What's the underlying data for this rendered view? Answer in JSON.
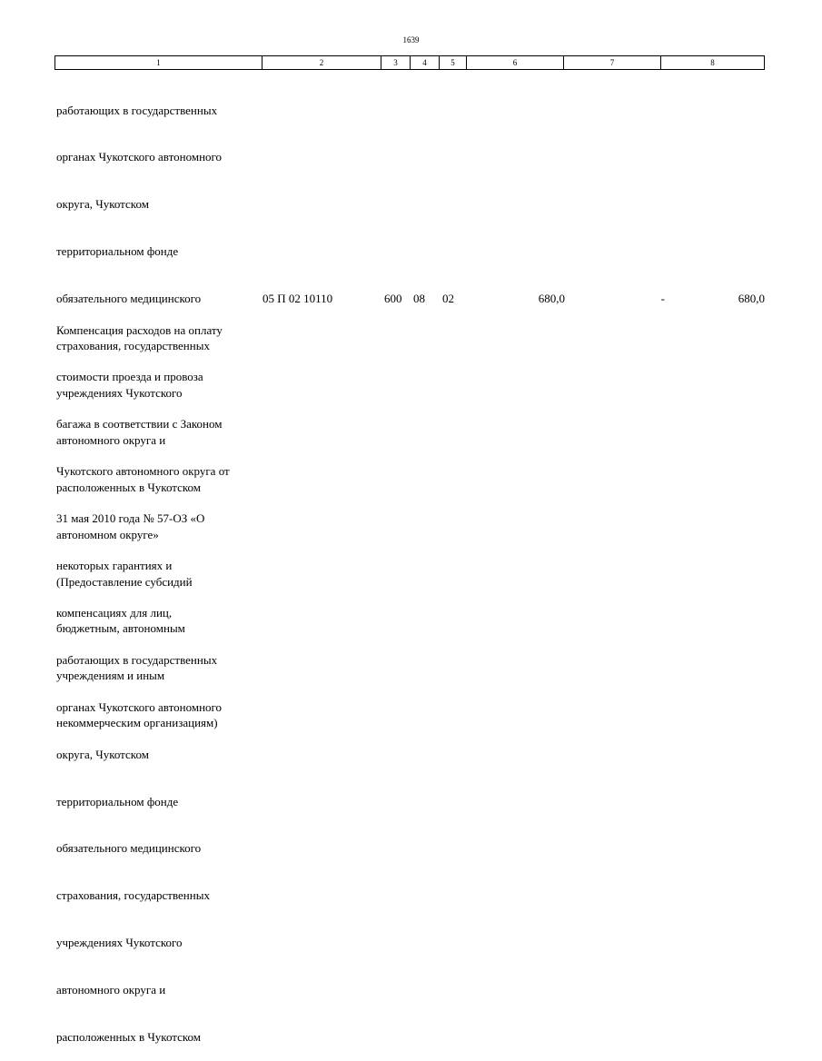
{
  "page_number": "1639",
  "header_columns": [
    "1",
    "2",
    "3",
    "4",
    "5",
    "6",
    "7",
    "8"
  ],
  "continuation_lines": [
    "работающих в государственных",
    "органах Чукотского автономного",
    "округа, Чукотском",
    "территориальном фонде",
    "обязательного медицинского",
    "страхования, государственных",
    "учреждениях Чукотского",
    "автономного округа и",
    "расположенных в Чукотском",
    "автономном округе»",
    "(Предоставление субсидий",
    "бюджетным, автономным",
    "учреждениям и иным",
    "некоммерческим организациям)"
  ],
  "row": {
    "lines": [
      "Компенсация расходов на оплату",
      "стоимости проезда и провоза",
      "багажа в соответствии с Законом",
      "Чукотского автономного округа от",
      "31 мая 2010 года № 57-ОЗ «О",
      "некоторых гарантиях и",
      "компенсациях для лиц,",
      "работающих в государственных",
      "органах Чукотского автономного",
      "округа, Чукотском",
      "территориальном фонде",
      "обязательного медицинского",
      "страхования, государственных",
      "учреждениях Чукотского",
      "автономного округа и",
      "расположенных в Чукотском"
    ],
    "code": "05 П 02 10110",
    "c3": "600",
    "c4": "08",
    "c5": "02",
    "c6": "680,0",
    "c7": "-",
    "c8": "680,0"
  }
}
